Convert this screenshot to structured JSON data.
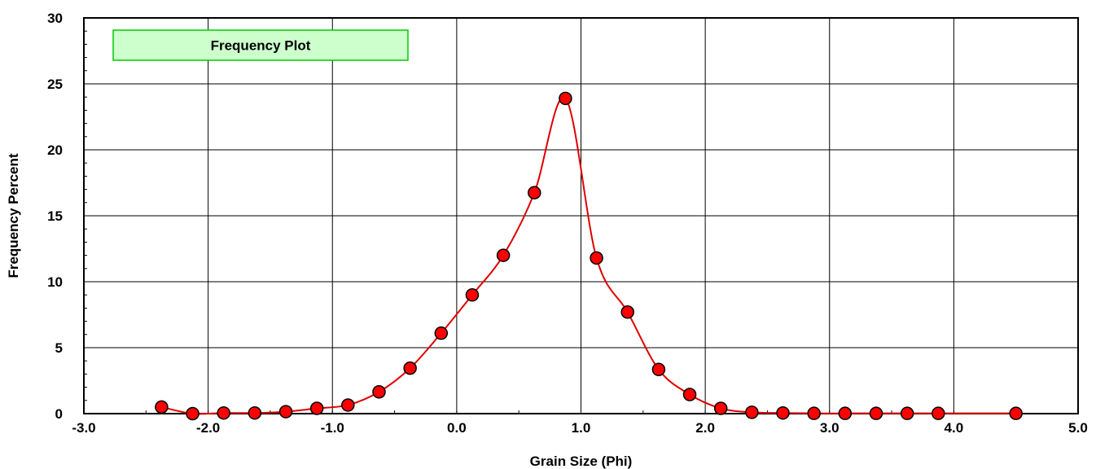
{
  "chart_data": {
    "type": "line",
    "title": "",
    "xlabel": "Grain Size (Phi)",
    "ylabel": "Frequency Percent",
    "xlim": [
      -3.0,
      5.0
    ],
    "ylim": [
      0,
      30
    ],
    "x_ticks": [
      "-3.0",
      "-2.0",
      "-1.0",
      "0.0",
      "1.0",
      "2.0",
      "3.0",
      "4.0",
      "5.0"
    ],
    "y_ticks": [
      "0",
      "5",
      "10",
      "15",
      "20",
      "25",
      "30"
    ],
    "grid": true,
    "legend_placement": "top-left",
    "series": [
      {
        "name": "Frequency Plot",
        "color": "#ff0000",
        "line_color": "#e00000",
        "marker": "circle",
        "smooth": true,
        "x": [
          -2.375,
          -2.125,
          -1.875,
          -1.625,
          -1.375,
          -1.125,
          -0.875,
          -0.625,
          -0.375,
          -0.125,
          0.125,
          0.375,
          0.625,
          0.875,
          1.125,
          1.375,
          1.625,
          1.875,
          2.125,
          2.375,
          2.625,
          2.875,
          3.125,
          3.375,
          3.625,
          3.875,
          4.5
        ],
        "y": [
          0.5,
          0.0,
          0.05,
          0.05,
          0.15,
          0.4,
          0.65,
          1.65,
          3.45,
          6.1,
          9.0,
          12.0,
          16.75,
          23.9,
          11.8,
          7.7,
          3.35,
          1.45,
          0.4,
          0.1,
          0.05,
          0.02,
          0.02,
          0.02,
          0.02,
          0.02,
          0.02
        ]
      }
    ],
    "colors": {
      "legend_fill": "#ccffcc",
      "legend_border": "#00cc00",
      "marker_fill": "#ff0000",
      "marker_stroke": "#000000",
      "grid": "#000000"
    }
  }
}
